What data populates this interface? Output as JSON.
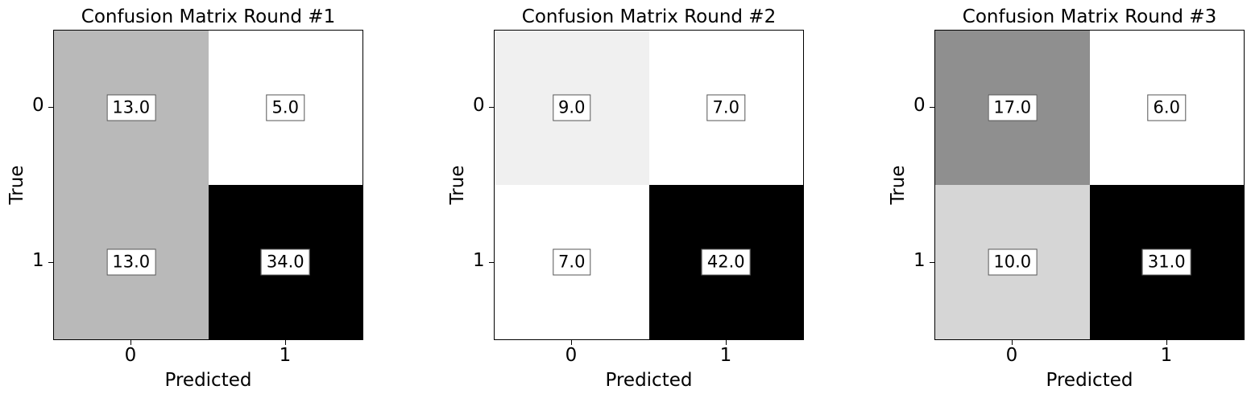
{
  "chart_data": [
    {
      "type": "heatmap",
      "title": "Confusion Matrix Round #1",
      "xlabel": "Predicted",
      "ylabel": "True",
      "x_tick_labels": [
        "0",
        "1"
      ],
      "y_tick_labels": [
        "0",
        "1"
      ],
      "values": [
        [
          13.0,
          5.0
        ],
        [
          13.0,
          34.0
        ]
      ],
      "value_labels": [
        [
          "13.0",
          "5.0"
        ],
        [
          "13.0",
          "34.0"
        ]
      ],
      "colormap": "grayscale, white = low, black = high"
    },
    {
      "type": "heatmap",
      "title": "Confusion Matrix Round #2",
      "xlabel": "Predicted",
      "ylabel": "True",
      "x_tick_labels": [
        "0",
        "1"
      ],
      "y_tick_labels": [
        "0",
        "1"
      ],
      "values": [
        [
          9.0,
          7.0
        ],
        [
          7.0,
          42.0
        ]
      ],
      "value_labels": [
        [
          "9.0",
          "7.0"
        ],
        [
          "7.0",
          "42.0"
        ]
      ],
      "colormap": "grayscale, white = low, black = high"
    },
    {
      "type": "heatmap",
      "title": "Confusion Matrix Round #3",
      "xlabel": "Predicted",
      "ylabel": "True",
      "x_tick_labels": [
        "0",
        "1"
      ],
      "y_tick_labels": [
        "0",
        "1"
      ],
      "values": [
        [
          17.0,
          6.0
        ],
        [
          10.0,
          31.0
        ]
      ],
      "value_labels": [
        [
          "17.0",
          "6.0"
        ],
        [
          "10.0",
          "31.0"
        ]
      ],
      "colormap": "grayscale, white = low, black = high"
    }
  ]
}
